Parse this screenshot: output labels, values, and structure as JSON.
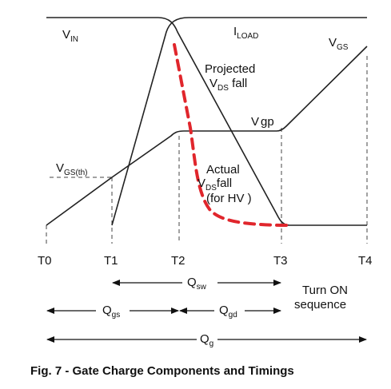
{
  "signals": {
    "vin": {
      "main": "V",
      "sub": "IN"
    },
    "iload": {
      "main": "I",
      "sub": "LOAD"
    },
    "vgs": {
      "main": "V",
      "sub": "GS"
    },
    "vgp": {
      "main": "V",
      "sub": "gp"
    },
    "vgs_th": {
      "main": "V",
      "sub": "GS(th)"
    }
  },
  "annotations": {
    "projected_line1": "Projected",
    "projected_main": "V",
    "projected_sub": "DS",
    "projected_tail": " fall",
    "actual_line1": "Actual",
    "actual_main": "V",
    "actual_sub": "DS",
    "actual_tail": "fall",
    "actual_line3": "(for HV )"
  },
  "time_markers": [
    "T0",
    "T1",
    "T2",
    "T3",
    "T4"
  ],
  "intervals": {
    "qsw": {
      "main": "Q",
      "sub": "sw"
    },
    "qgs": {
      "main": "Q",
      "sub": "gs"
    },
    "qgd": {
      "main": "Q",
      "sub": "gd"
    },
    "qg": {
      "main": "Q",
      "sub": "g"
    }
  },
  "sequence_label": [
    "Turn ON",
    "sequence"
  ],
  "caption": "Fig. 7 - Gate Charge Components and Timings",
  "colors": {
    "actual_vds": "#e0262c",
    "traces": "#222222"
  }
}
